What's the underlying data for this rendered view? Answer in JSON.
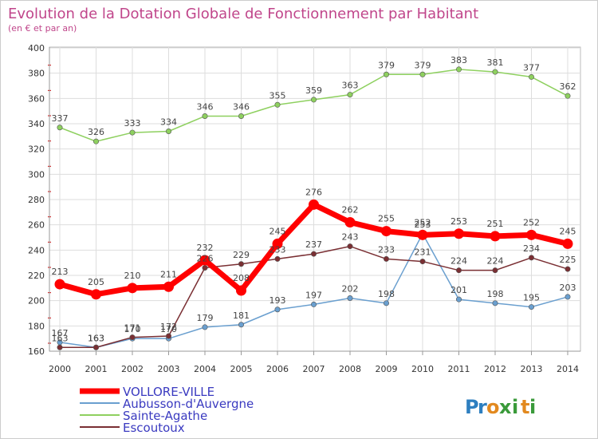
{
  "chart_data": {
    "type": "line",
    "title": "Evolution de la Dotation Globale de Fonctionnement par Habitant",
    "subtitle": "(en € et par an)",
    "xlabel": "",
    "ylabel": "",
    "x": [
      "2000",
      "2001",
      "2002",
      "2003",
      "2004",
      "2005",
      "2006",
      "2007",
      "2008",
      "2009",
      "2010",
      "2011",
      "2012",
      "2013",
      "2014"
    ],
    "ylim": [
      160,
      400
    ],
    "yticks": [
      "160",
      "180",
      "200",
      "220",
      "240",
      "260",
      "280",
      "300",
      "320",
      "340",
      "360",
      "380",
      "400"
    ],
    "grid": true,
    "legend_position": "bottom-left",
    "series": [
      {
        "name": "VOLLORE-VILLE",
        "color": "#ff0000",
        "values": [
          213,
          205,
          210,
          211,
          232,
          208,
          245,
          276,
          262,
          255,
          252,
          253,
          251,
          252,
          245
        ]
      },
      {
        "name": "Aubusson-d'Auvergne",
        "color": "#6a9fcf",
        "values": [
          167,
          163,
          170,
          170,
          179,
          181,
          193,
          197,
          202,
          198,
          253,
          201,
          198,
          195,
          203
        ]
      },
      {
        "name": "Sainte-Agathe",
        "color": "#8ed05f",
        "values": [
          337,
          326,
          333,
          334,
          346,
          346,
          355,
          359,
          363,
          379,
          379,
          383,
          381,
          377,
          362
        ]
      },
      {
        "name": "Escoutoux",
        "color": "#7a2f33",
        "values": [
          163,
          163,
          171,
          172,
          226,
          229,
          233,
          237,
          243,
          233,
          231,
          224,
          224,
          234,
          225
        ]
      }
    ]
  },
  "brand": {
    "letters": [
      "P",
      "r",
      "o",
      "x",
      "i",
      "t",
      "i"
    ],
    "colors": [
      "#2e7fc0",
      "#2e7fc0",
      "#e2891f",
      "#3a9a3a",
      "#3a9a3a",
      "#e2891f",
      "#3a9a3a"
    ]
  }
}
